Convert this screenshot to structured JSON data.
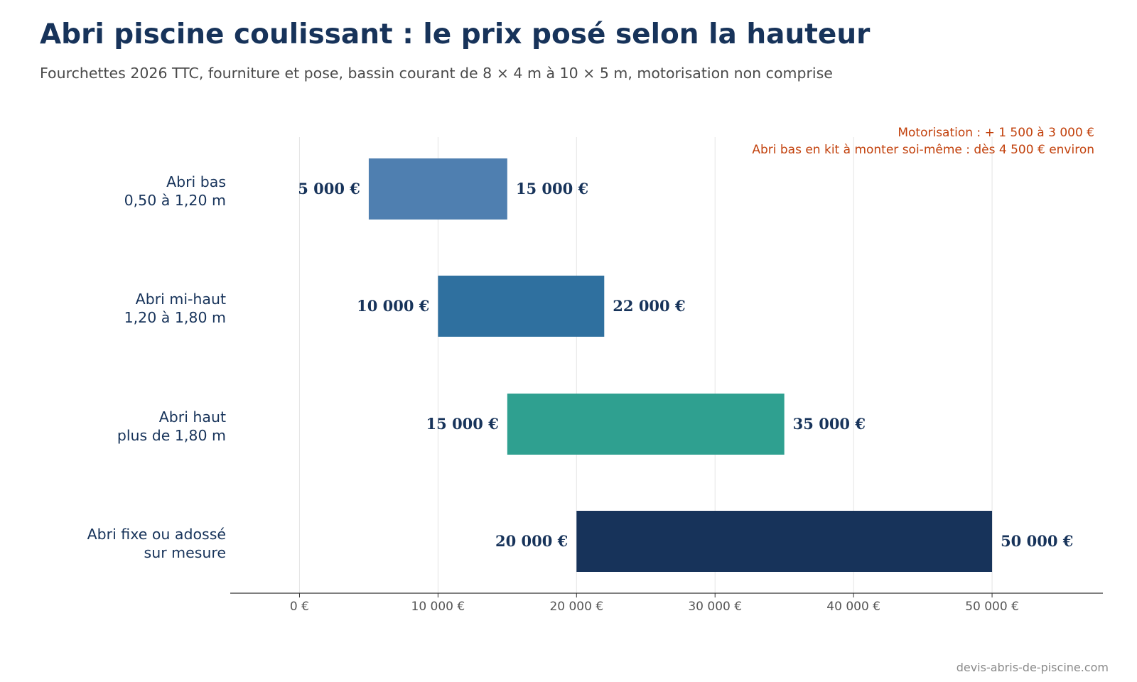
{
  "title": "Abri piscine coulissant : le prix posé selon la hauteur",
  "subtitle": "Fourchettes 2026 TTC, fourniture et pose, bassin courant de 8 × 4 m à 10 × 5 m, motorisation non comprise",
  "source": "devis-abris-de-piscine.com",
  "chart_data": {
    "type": "bar",
    "orientation": "horizontal",
    "bar_style": "range",
    "categories": [
      [
        "Abri bas",
        "0,50 à 1,20 m"
      ],
      [
        "Abri mi-haut",
        "1,20 à 1,80 m"
      ],
      [
        "Abri haut",
        "plus de 1,80 m"
      ],
      [
        "Abri fixe ou adossé",
        "sur mesure"
      ]
    ],
    "ranges": [
      {
        "low": 5000,
        "high": 15000,
        "low_label": "5 000 €",
        "high_label": "15 000 €",
        "color": "#4f7fb0"
      },
      {
        "low": 10000,
        "high": 22000,
        "low_label": "10 000 €",
        "high_label": "22 000 €",
        "color": "#2f709f"
      },
      {
        "low": 15000,
        "high": 35000,
        "low_label": "15 000 €",
        "high_label": "35 000 €",
        "color": "#2fa090"
      },
      {
        "low": 20000,
        "high": 50000,
        "low_label": "20 000 €",
        "high_label": "50 000 €",
        "color": "#17335a"
      }
    ],
    "xlim": [
      -5000,
      58000
    ],
    "xticks": [
      0,
      10000,
      20000,
      30000,
      40000,
      50000
    ],
    "xtick_labels": [
      "0 €",
      "10 000 €",
      "20 000 €",
      "30 000 €",
      "40 000 €",
      "50 000 €"
    ],
    "xlabel": "",
    "ylabel": "",
    "grid": "vertical",
    "legend": "none",
    "annotations": [
      "Motorisation : + 1 500 à 3 000 €",
      "Abri bas en kit à monter soi-même : dès 4 500 € environ"
    ],
    "colors": {
      "title": "#17335a",
      "label": "#17335a",
      "annotation": "#c2410c",
      "grid": "#e4e4e4",
      "axis": "#333333",
      "tick": "#555555"
    }
  }
}
